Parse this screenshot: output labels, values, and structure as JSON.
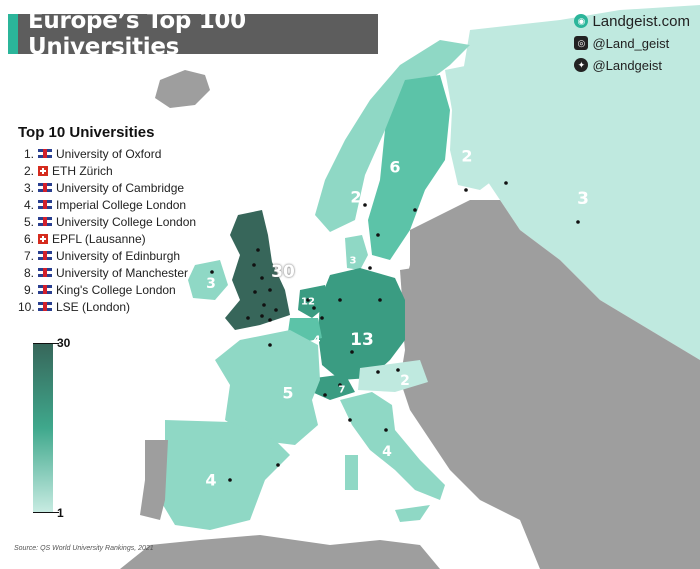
{
  "title": "Europe’s Top 100 Universities",
  "brand": {
    "site": "Landgeist.com",
    "instagram": "@Land_geist",
    "twitter": "@Landgeist"
  },
  "top10": {
    "heading": "Top 10 Universities",
    "items": [
      {
        "num": "1.",
        "flag": "uk",
        "name": "University of Oxford"
      },
      {
        "num": "2.",
        "flag": "ch",
        "name": "ETH Zürich"
      },
      {
        "num": "3.",
        "flag": "uk",
        "name": "University of Cambridge"
      },
      {
        "num": "4.",
        "flag": "uk",
        "name": "Imperial College London"
      },
      {
        "num": "5.",
        "flag": "uk",
        "name": "University College London"
      },
      {
        "num": "6.",
        "flag": "ch",
        "name": "EPFL (Lausanne)"
      },
      {
        "num": "7.",
        "flag": "uk",
        "name": "University of Edinburgh"
      },
      {
        "num": "8.",
        "flag": "uk",
        "name": "University of Manchester"
      },
      {
        "num": "9.",
        "flag": "uk",
        "name": "King's College London"
      },
      {
        "num": "10.",
        "flag": "uk",
        "name": "LSE (London)"
      }
    ]
  },
  "legend": {
    "max": "30",
    "min": "1"
  },
  "source": "Source: QS World University Rankings, 2021",
  "country_counts": {
    "united_kingdom": "30",
    "germany": "13",
    "netherlands": "12",
    "sweden": "6",
    "france": "5",
    "spain": "4",
    "italy": "4",
    "belgium": "4",
    "ireland": "3",
    "denmark": "3",
    "russia": "3",
    "norway": "2",
    "finland": "2",
    "austria": "2",
    "switzerland": "7"
  },
  "colors": {
    "title_bg": "#5d5d5d",
    "accent": "#2bb59a",
    "uk": "#37665a",
    "germany": "#3a9c82",
    "mid": "#5cc3a8",
    "light": "#8fd8c5",
    "lightest": "#bfe9df",
    "none": "#9e9e9e",
    "sea": "#ffffff"
  }
}
